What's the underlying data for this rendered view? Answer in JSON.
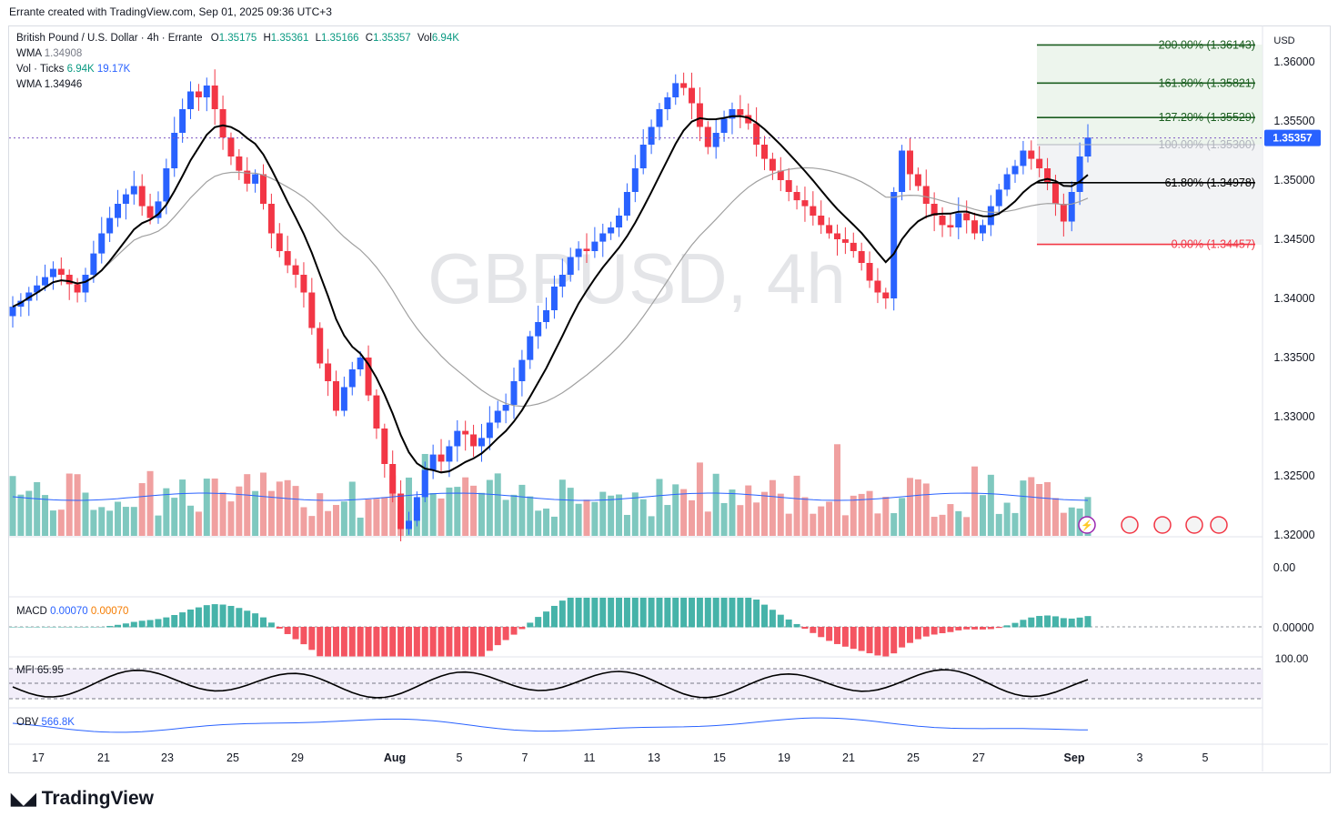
{
  "header": {
    "created_by": "Errante created with TradingView.com, Sep 01, 2025 09:36 UTC+3"
  },
  "symbol": {
    "name": "British Pound / U.S. Dollar · 4h · Errante",
    "o_label": "O",
    "o": "1.35175",
    "h_label": "H",
    "h": "1.35361",
    "l_label": "L",
    "l": "1.35166",
    "c_label": "C",
    "c": "1.35357",
    "vol_label": "Vol",
    "vol": "6.94K"
  },
  "indicators": {
    "wma1": {
      "label": "WMA",
      "value": "1.34908"
    },
    "vol_ticks": {
      "label": "Vol · Ticks",
      "v1": "6.94K",
      "v2": "19.17K"
    },
    "wma2": {
      "label": "WMA",
      "value": "1.34946"
    },
    "macd": {
      "label": "MACD",
      "v1": "0.00070",
      "v2": "0.00070"
    },
    "mfi": {
      "label": "MFI",
      "value": "65.95"
    },
    "obv": {
      "label": "OBV",
      "value": "566.8K"
    }
  },
  "watermark": "GBPUSD, 4h",
  "currency": "USD",
  "last_price": "1.35357",
  "brand": "TradingView",
  "colors": {
    "up": "#2962ff",
    "down": "#f23645",
    "vol_up": "#7fc8bf",
    "vol_down": "#f0a0a0",
    "fib_green": "#1b5e20",
    "fib_red": "#f23645"
  },
  "chart_data": {
    "type": "candlestick",
    "title": "British Pound / U.S. Dollar · 4h · Errante",
    "ylim": [
      1.32,
      1.3625
    ],
    "y_ticks": [
      "1.36000",
      "1.35500",
      "1.35000",
      "1.34500",
      "1.34000",
      "1.33500",
      "1.33000",
      "1.32500",
      "1.32000"
    ],
    "x_ticks": [
      "17",
      "21",
      "23",
      "25",
      "29",
      "Aug",
      "5",
      "7",
      "11",
      "13",
      "15",
      "19",
      "21",
      "25",
      "27",
      "Sep",
      "3",
      "5"
    ],
    "fibonacci": [
      {
        "label": "200.00% (1.36143)",
        "value": 1.36143
      },
      {
        "label": "161.80% (1.35821)",
        "value": 1.35821
      },
      {
        "label": "127.20% (1.35529)",
        "value": 1.35529
      },
      {
        "label": "100.00% (1.35300)",
        "value": 1.353
      },
      {
        "label": "61.80% (1.34978)",
        "value": 1.34978
      },
      {
        "label": "0.00% (1.34457)",
        "value": 1.34457
      }
    ],
    "closes": [
      1.3393,
      1.3398,
      1.3405,
      1.3411,
      1.3418,
      1.3425,
      1.342,
      1.3412,
      1.3405,
      1.342,
      1.3438,
      1.3455,
      1.3468,
      1.348,
      1.3488,
      1.3495,
      1.3478,
      1.3468,
      1.3482,
      1.351,
      1.354,
      1.356,
      1.3575,
      1.357,
      1.358,
      1.356,
      1.3536,
      1.352,
      1.3508,
      1.3497,
      1.3505,
      1.348,
      1.3455,
      1.344,
      1.3428,
      1.342,
      1.3405,
      1.3375,
      1.3345,
      1.333,
      1.3305,
      1.3325,
      1.334,
      1.335,
      1.3318,
      1.329,
      1.326,
      1.3235,
      1.3205,
      1.3212,
      1.3232,
      1.3255,
      1.3268,
      1.3262,
      1.3275,
      1.3288,
      1.3285,
      1.3275,
      1.3282,
      1.3295,
      1.3305,
      1.331,
      1.333,
      1.3348,
      1.3368,
      1.338,
      1.339,
      1.341,
      1.342,
      1.3435,
      1.3442,
      1.344,
      1.3448,
      1.3455,
      1.346,
      1.347,
      1.349,
      1.351,
      1.353,
      1.3545,
      1.356,
      1.357,
      1.3582,
      1.3578,
      1.3565,
      1.3545,
      1.3528,
      1.354,
      1.3552,
      1.356,
      1.3555,
      1.3548,
      1.353,
      1.3518,
      1.3508,
      1.35,
      1.349,
      1.3483,
      1.3478,
      1.347,
      1.3462,
      1.3455,
      1.345,
      1.3447,
      1.344,
      1.343,
      1.3415,
      1.3405,
      1.34,
      1.349,
      1.3525,
      1.3505,
      1.3495,
      1.348,
      1.347,
      1.3462,
      1.346,
      1.3472,
      1.3466,
      1.3455,
      1.3462,
      1.3478,
      1.3492,
      1.3505,
      1.3512,
      1.3525,
      1.3518,
      1.351,
      1.3498,
      1.348,
      1.3465,
      1.349,
      1.352,
      1.3536
    ],
    "candle_count_note": "",
    "series": [
      {
        "name": "WMA",
        "value": "1.34908"
      },
      {
        "name": "WMA",
        "value": "1.34946"
      }
    ]
  }
}
